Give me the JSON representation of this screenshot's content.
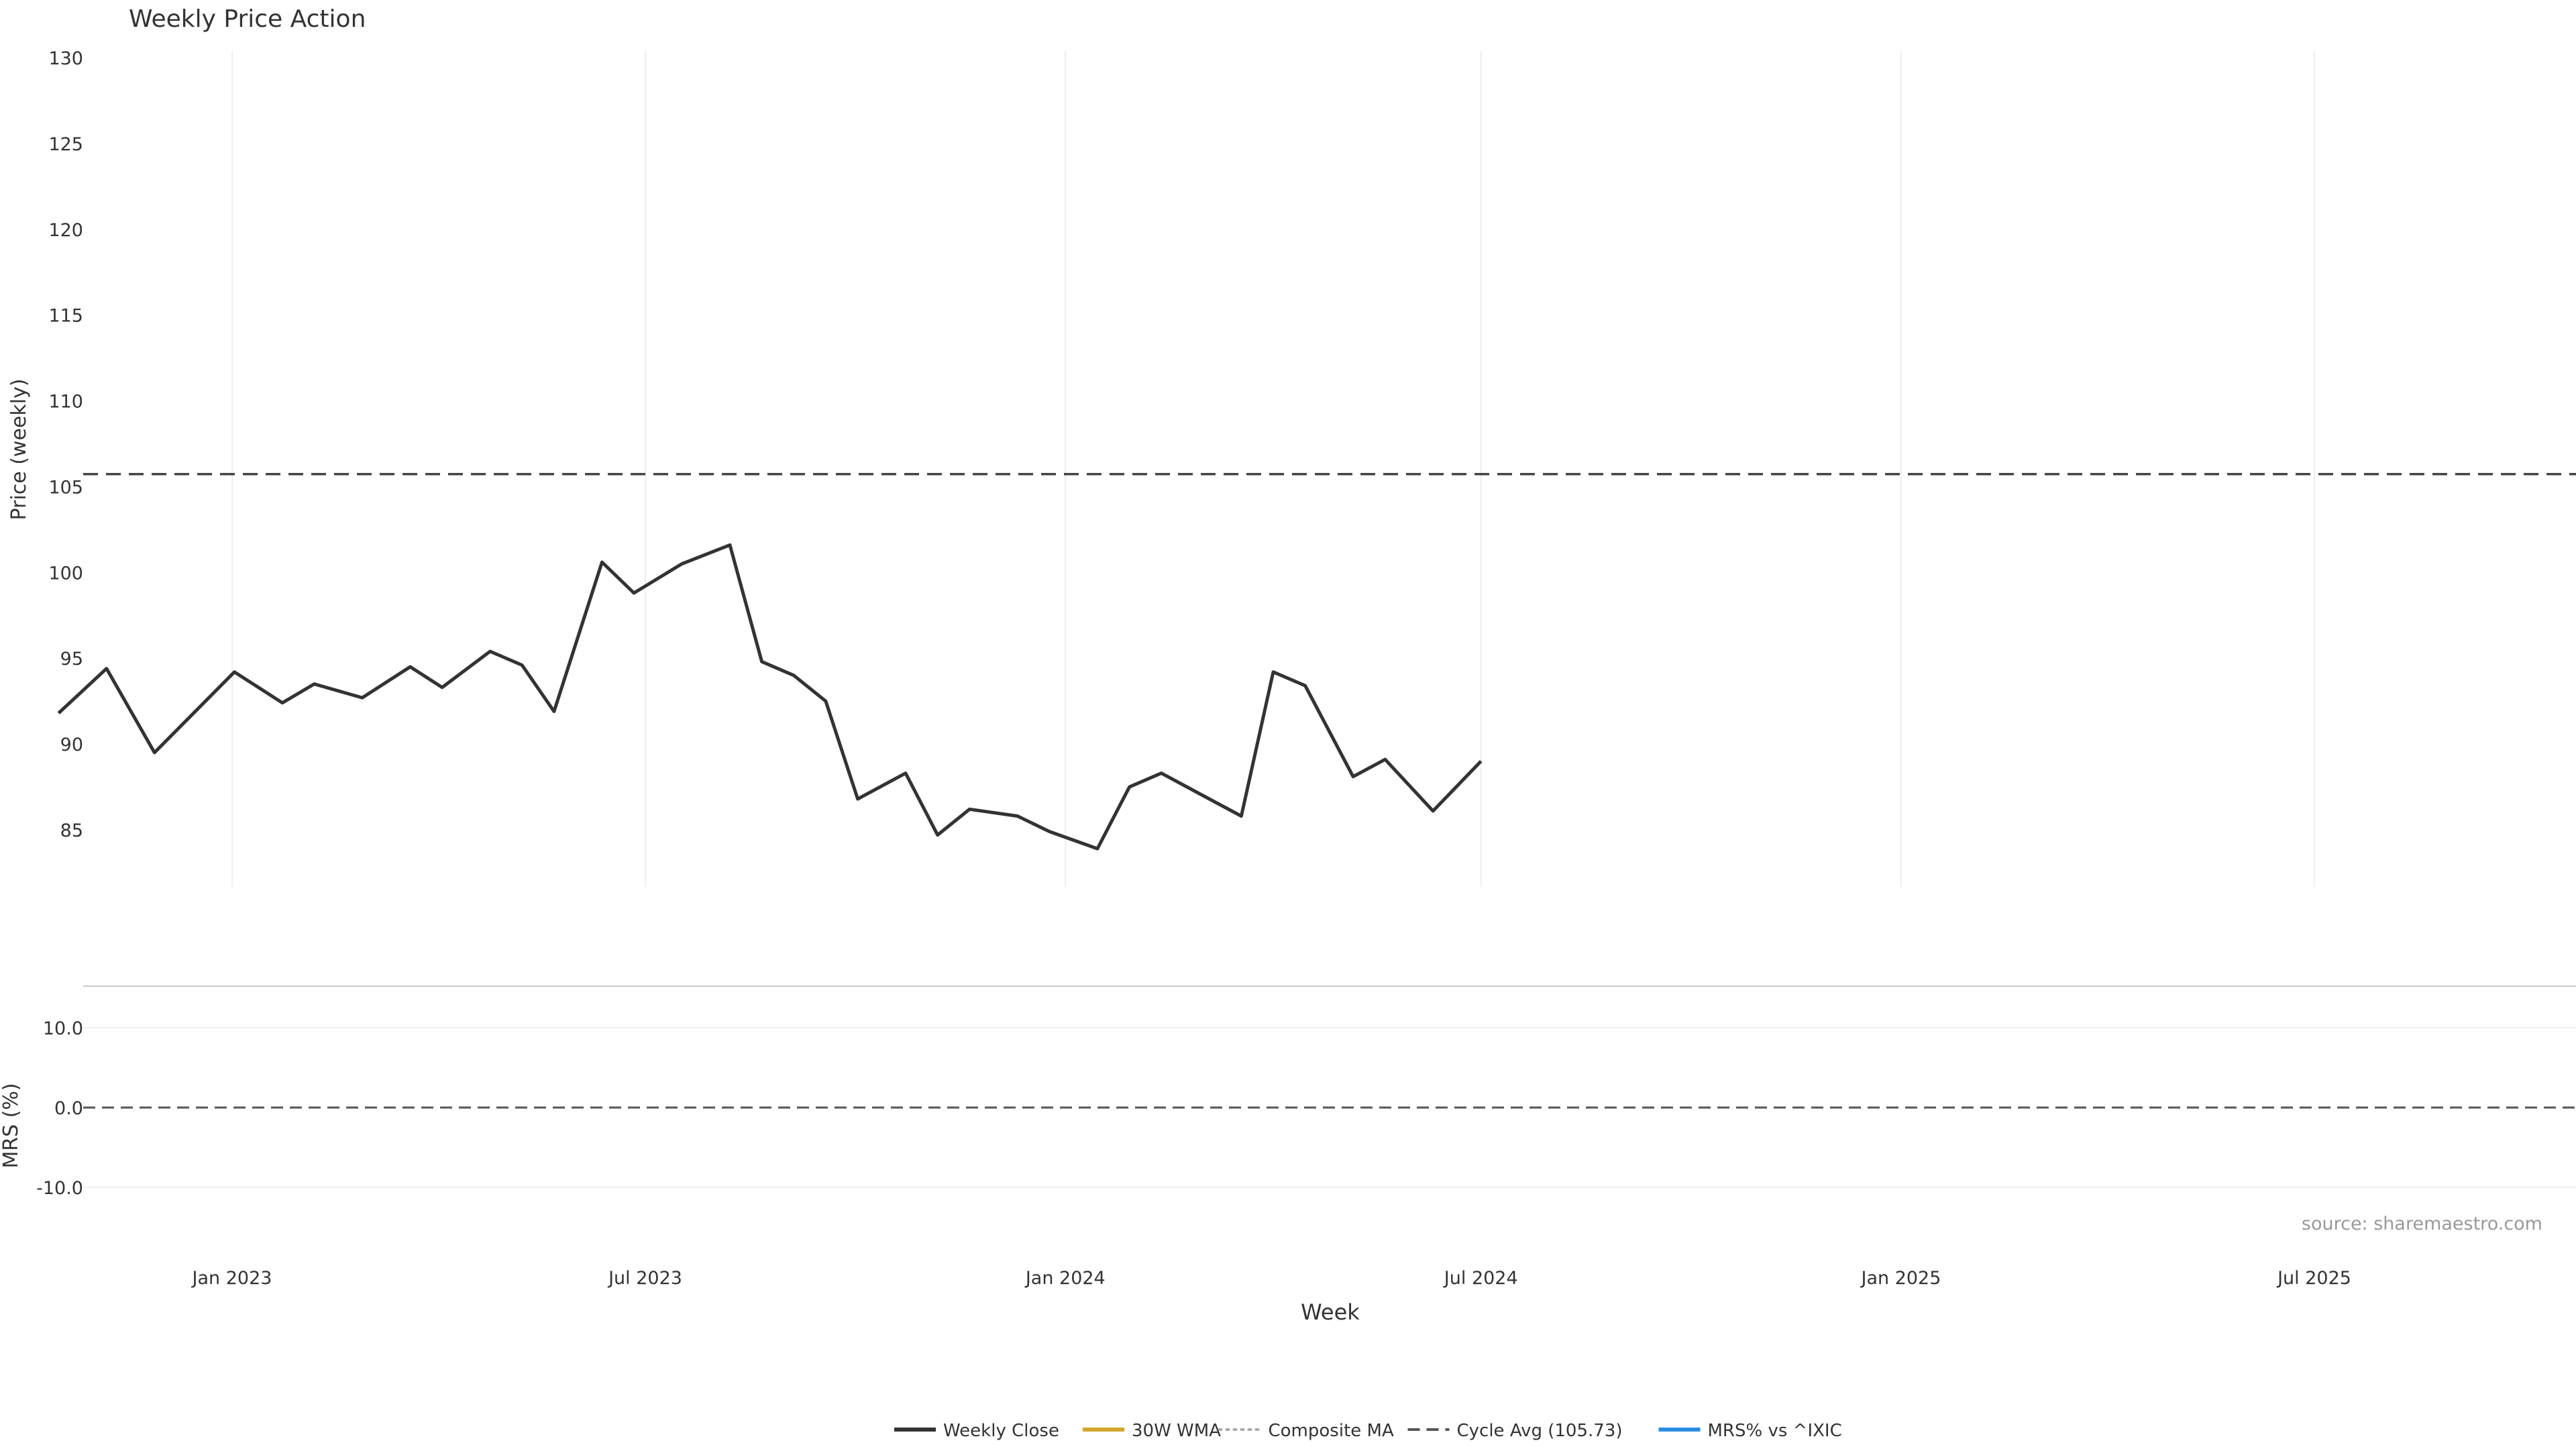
{
  "chart_data": {
    "type": "line",
    "title": "Weekly Price Action",
    "xlabel": "Week",
    "source": "source: sharemaestro.com",
    "date_range": [
      "2022-10-17",
      "2025-11-24"
    ],
    "x_ticks": [
      {
        "date": "2023-01-01",
        "label": "Jan 2023"
      },
      {
        "date": "2023-07-01",
        "label": "Jul 2023"
      },
      {
        "date": "2024-01-01",
        "label": "Jan 2024"
      },
      {
        "date": "2024-07-01",
        "label": "Jul 2024"
      },
      {
        "date": "2025-01-01",
        "label": "Jan 2025"
      },
      {
        "date": "2025-07-01",
        "label": "Jul 2025"
      }
    ],
    "price_panel": {
      "ylabel": "Price (weekly)",
      "ylim": [
        81.5,
        130.5
      ],
      "y_ticks": [
        85,
        90,
        95,
        100,
        105,
        110,
        115,
        120,
        125,
        130
      ],
      "cycle_avg": 105.73,
      "series": [
        {
          "name": "Weekly Close",
          "color": "#333333",
          "style": "solid",
          "width": 5,
          "points": [
            [
              "2022-10-17",
              91.8
            ],
            [
              "2022-11-07",
              94.4
            ],
            [
              "2022-11-28",
              89.5
            ],
            [
              "2023-01-02",
              94.2
            ],
            [
              "2023-01-23",
              92.4
            ],
            [
              "2023-02-06",
              93.5
            ],
            [
              "2023-02-27",
              92.7
            ],
            [
              "2023-03-20",
              94.5
            ],
            [
              "2023-04-03",
              93.3
            ],
            [
              "2023-04-24",
              95.4
            ],
            [
              "2023-05-08",
              94.6
            ],
            [
              "2023-05-22",
              91.9
            ],
            [
              "2023-06-12",
              100.6
            ],
            [
              "2023-06-26",
              98.8
            ],
            [
              "2023-07-17",
              100.5
            ],
            [
              "2023-08-07",
              101.6
            ],
            [
              "2023-08-21",
              94.8
            ],
            [
              "2023-09-04",
              94.0
            ],
            [
              "2023-09-18",
              92.5
            ],
            [
              "2023-10-02",
              86.8
            ],
            [
              "2023-10-23",
              88.3
            ],
            [
              "2023-11-06",
              84.7
            ],
            [
              "2023-11-20",
              86.2
            ],
            [
              "2023-12-11",
              85.8
            ],
            [
              "2023-12-25",
              84.9
            ],
            [
              "2024-01-15",
              83.9
            ],
            [
              "2024-01-29",
              87.5
            ],
            [
              "2024-02-12",
              88.3
            ],
            [
              "2024-03-04",
              86.8
            ],
            [
              "2024-03-18",
              85.8
            ],
            [
              "2024-04-01",
              94.2
            ],
            [
              "2024-04-15",
              93.4
            ],
            [
              "2024-05-06",
              88.1
            ],
            [
              "2024-05-20",
              89.1
            ],
            [
              "2024-06-10",
              86.1
            ],
            [
              "2024-07-01",
              89.0
            ]
          ]
        }
      ]
    },
    "mrs_panel": {
      "ylabel": "MRS (%)",
      "ylim": [
        -19,
        15
      ],
      "y_ticks": [
        10.0,
        0.0,
        -10.0
      ],
      "y_tick_labels": [
        "10.0",
        "0.0",
        "-10.0"
      ]
    },
    "legend": {
      "position": "bottom-center",
      "entries": [
        {
          "label": "Weekly Close",
          "color": "#333333",
          "style": "solid"
        },
        {
          "label": "30W WMA",
          "color": "#d4a72c",
          "style": "solid"
        },
        {
          "label": "Composite MA",
          "color": "#aaaaaa",
          "style": "dotted"
        },
        {
          "label": "Cycle Avg (105.73)",
          "color": "#555555",
          "style": "dashed"
        },
        {
          "label": "MRS% vs ^IXIC",
          "color": "#2a8ee0",
          "style": "solid"
        }
      ]
    }
  }
}
